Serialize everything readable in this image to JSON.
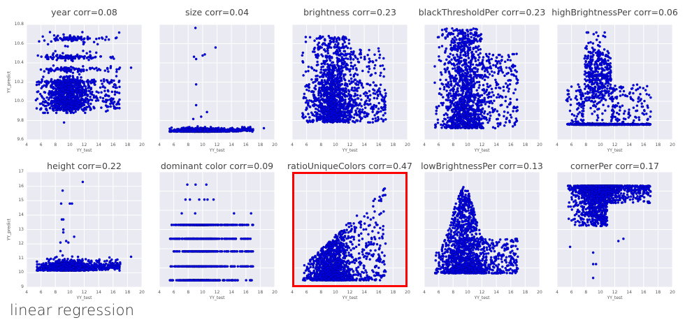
{
  "caption": "linear regression",
  "style": {
    "axes_bg": "#eaeaf2",
    "grid": "#ffffff",
    "dot_fill": "#0000ee",
    "dot_edge": "#000066",
    "highlight": "#ff0000"
  },
  "chart_data": [
    {
      "type": "scatter",
      "title": "year corr=0.08",
      "feature": "year",
      "corr": 0.08,
      "xlabel": "YY_test",
      "ylabel": "YY_predict",
      "xlim": [
        4,
        20
      ],
      "ylim": [
        9.6,
        10.8
      ],
      "xticks": [
        4,
        6,
        8,
        10,
        12,
        14,
        16,
        18,
        20
      ],
      "yticks": [
        9.6,
        9.8,
        10.0,
        10.2,
        10.4,
        10.6,
        10.8
      ],
      "ytick_labels": [
        "9.6",
        "9.8",
        "10.0",
        "10.2",
        "10.4",
        "10.6",
        "10.8"
      ],
      "show_yticks": true,
      "highlighted": false,
      "shape": "banded",
      "desc": "Horizontal bands near 10.65, 10.45, 10.33, 10.1, 9.95; dense at x=8-12",
      "bands": [
        10.65,
        10.46,
        10.33,
        10.2,
        10.1,
        10.0,
        9.92
      ],
      "ymin_pt": 9.78,
      "ymax_pt": 10.72
    },
    {
      "type": "scatter",
      "title": "size corr=0.04",
      "feature": "size",
      "corr": 0.04,
      "xlabel": "YY_test",
      "ylabel": "",
      "xlim": [
        4,
        20
      ],
      "xticks": [
        4,
        6,
        8,
        10,
        12,
        14,
        16,
        18,
        20
      ],
      "show_yticks": false,
      "highlighted": false,
      "shape": "flat-outliers",
      "desc": "Nearly flat line at bottom with few high outliers near x=9-12",
      "base": 0.07,
      "outliers": [
        [
          9.0,
          0.97
        ],
        [
          11.8,
          0.8
        ],
        [
          8.8,
          0.72
        ],
        [
          9.1,
          0.7
        ],
        [
          10.0,
          0.73
        ],
        [
          10.3,
          0.74
        ],
        [
          9.1,
          0.48
        ],
        [
          9.1,
          0.3
        ],
        [
          10.6,
          0.24
        ],
        [
          9.8,
          0.2
        ],
        [
          8.7,
          0.18
        ]
      ]
    },
    {
      "type": "scatter",
      "title": "brightness corr=0.23",
      "feature": "brightness",
      "corr": 0.23,
      "xlabel": "YY_test",
      "ylabel": "",
      "xlim": [
        4,
        20
      ],
      "xticks": [
        4,
        6,
        8,
        10,
        12,
        14,
        16,
        18,
        20
      ],
      "show_yticks": false,
      "highlighted": false,
      "shape": "cloud",
      "desc": "Dense vertical cloud at x=8-11 spanning most of y range",
      "ylow": 0.15,
      "yhigh": 0.9
    },
    {
      "type": "scatter",
      "title": "blackThresholdPer corr=0.23",
      "feature": "blackThresholdPer",
      "corr": 0.23,
      "xlabel": "YY_test",
      "ylabel": "",
      "xlim": [
        4,
        20
      ],
      "xticks": [
        4,
        6,
        8,
        10,
        12,
        14,
        16,
        18,
        20
      ],
      "show_yticks": false,
      "highlighted": false,
      "shape": "cloud-floor",
      "desc": "Dense cloud at x=8-12 with flat floor",
      "ylow": 0.1,
      "yhigh": 0.97
    },
    {
      "type": "scatter",
      "title": "highBrightnessPer corr=0.06",
      "feature": "highBrightnessPer",
      "corr": 0.06,
      "xlabel": "YY_test",
      "ylabel": "",
      "xlim": [
        4,
        20
      ],
      "xticks": [
        4,
        6,
        8,
        10,
        12,
        14,
        16,
        18,
        20
      ],
      "show_yticks": false,
      "highlighted": false,
      "shape": "floor-cloud",
      "desc": "Flat line at bottom plus cloud at x=8-11 in mid-upper region",
      "ylow": 0.13,
      "yhigh": 0.93
    },
    {
      "type": "scatter",
      "title": "height corr=0.22",
      "feature": "height",
      "corr": 0.22,
      "xlabel": "YY_test",
      "ylabel": "YY_predict",
      "xlim": [
        4,
        20
      ],
      "ylim": [
        9,
        17
      ],
      "xticks": [
        4,
        6,
        8,
        10,
        12,
        14,
        16,
        18,
        20
      ],
      "yticks": [
        9,
        10,
        11,
        12,
        13,
        14,
        15,
        16,
        17
      ],
      "ytick_labels": [
        "9",
        "10",
        "11",
        "12",
        "13",
        "14",
        "15",
        "16",
        "17"
      ],
      "show_yticks": true,
      "highlighted": false,
      "shape": "flat-outliers",
      "desc": "Dense band ~10-10.5 with outliers up to 16.3",
      "base_value": 10.15,
      "outliers": [
        [
          11.8,
          16.3
        ],
        [
          9.0,
          15.7
        ],
        [
          8.8,
          14.8
        ],
        [
          10.0,
          14.8
        ],
        [
          10.3,
          14.8
        ],
        [
          8.9,
          13.7
        ],
        [
          9.1,
          13.7
        ],
        [
          9.1,
          13.0
        ],
        [
          9.1,
          12.8
        ],
        [
          10.6,
          12.5
        ],
        [
          9.5,
          12.2
        ],
        [
          9.8,
          12.1
        ],
        [
          8.7,
          12.1
        ],
        [
          8.7,
          11.5
        ],
        [
          9.0,
          11.2
        ]
      ]
    },
    {
      "type": "scatter",
      "title": "dominant color corr=0.09",
      "feature": "dominant color",
      "corr": 0.09,
      "xlabel": "YY_test",
      "ylabel": "",
      "xlim": [
        4,
        20
      ],
      "xticks": [
        4,
        6,
        8,
        10,
        12,
        14,
        16,
        18,
        20
      ],
      "show_yticks": false,
      "highlighted": false,
      "shape": "discrete-rows",
      "desc": "Discrete horizontal rows of points",
      "rows": [
        0.06,
        0.18,
        0.31,
        0.42,
        0.54,
        0.64,
        0.76,
        0.89
      ]
    },
    {
      "type": "scatter",
      "title": "ratioUniqueColors corr=0.47",
      "feature": "ratioUniqueColors",
      "corr": 0.47,
      "xlabel": "YY_test",
      "ylabel": "",
      "xlim": [
        4,
        20
      ],
      "xticks": [
        4,
        6,
        8,
        10,
        12,
        14,
        16,
        18,
        20
      ],
      "show_yticks": false,
      "highlighted": true,
      "shape": "wedge-up",
      "desc": "Floor-based cloud spreading upward with x; strongest correlation",
      "ylow": 0.06,
      "yhigh": 0.92
    },
    {
      "type": "scatter",
      "title": "lowBrightnessPer corr=0.13",
      "feature": "lowBrightnessPer",
      "corr": 0.13,
      "xlabel": "YY_test",
      "ylabel": "",
      "xlim": [
        4,
        20
      ],
      "xticks": [
        4,
        6,
        8,
        10,
        12,
        14,
        16,
        18,
        20
      ],
      "show_yticks": false,
      "highlighted": false,
      "shape": "peak-floor",
      "desc": "Cloud peaking at x~9-10, flat floor",
      "ylow": 0.12,
      "yhigh": 0.88
    },
    {
      "type": "scatter",
      "title": "cornerPer corr=0.17",
      "feature": "cornerPer",
      "corr": 0.17,
      "xlabel": "YY_test",
      "ylabel": "",
      "xlim": [
        4,
        20
      ],
      "xticks": [
        4,
        6,
        8,
        10,
        12,
        14,
        16,
        18,
        20
      ],
      "show_yticks": false,
      "highlighted": false,
      "shape": "ceiling-drip",
      "desc": "Dense ceiling band near top with tail dripping downward at x=8-10",
      "ytop": 0.88,
      "ymin_pt": 0.08
    }
  ]
}
